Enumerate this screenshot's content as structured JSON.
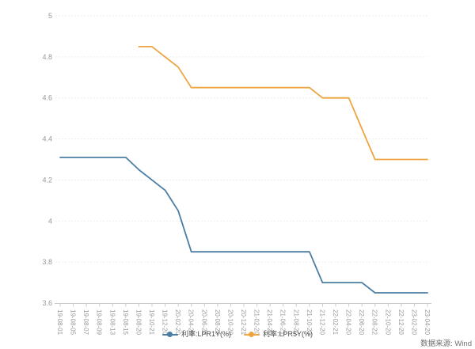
{
  "chart_data": {
    "type": "line",
    "title": "",
    "xlabel": "",
    "ylabel": "",
    "ylim": [
      3.6,
      5
    ],
    "yticks": [
      3.6,
      3.8,
      4,
      4.2,
      4.4,
      4.6,
      4.8,
      5
    ],
    "grid": true,
    "legend_position": "bottom",
    "categories": [
      "19-08-01",
      "19-08-05",
      "19-08-07",
      "19-08-09",
      "19-08-13",
      "19-08-15",
      "19-08-20",
      "19-10-21",
      "19-12-20",
      "20-02-20",
      "20-04-20",
      "20-06-22",
      "20-08-20",
      "20-10-20",
      "20-12-21",
      "21-02-20",
      "21-04-20",
      "21-06-21",
      "21-08-20",
      "21-10-20",
      "21-12-20",
      "22-02-21",
      "22-04-20",
      "22-06-20",
      "22-08-22",
      "22-10-20",
      "22-12-20",
      "23-02-20",
      "23-04-20"
    ],
    "series": [
      {
        "name": "利率:LPR1Y(%)",
        "color": "#4b7ea4",
        "values": [
          4.31,
          4.31,
          4.31,
          4.31,
          4.31,
          4.31,
          4.25,
          4.2,
          4.15,
          4.05,
          3.85,
          3.85,
          3.85,
          3.85,
          3.85,
          3.85,
          3.85,
          3.85,
          3.85,
          3.85,
          3.7,
          3.7,
          3.7,
          3.7,
          3.65,
          3.65,
          3.65,
          3.65,
          3.65
        ]
      },
      {
        "name": "利率:LPR5Y(%)",
        "color": "#eca53f",
        "values": [
          null,
          null,
          null,
          null,
          null,
          null,
          4.85,
          4.85,
          4.8,
          4.75,
          4.65,
          4.65,
          4.65,
          4.65,
          4.65,
          4.65,
          4.65,
          4.65,
          4.65,
          4.65,
          4.6,
          4.6,
          4.6,
          4.45,
          4.3,
          4.3,
          4.3,
          4.3,
          4.3
        ]
      }
    ]
  },
  "legend": {
    "items": [
      {
        "label": "利率:LPR1Y(%)",
        "color": "#4b7ea4"
      },
      {
        "label": "利率:LPR5Y(%)",
        "color": "#eca53f"
      }
    ]
  },
  "footer": {
    "source_label": "数据来源: Wind"
  },
  "style": {
    "grid_color": "#e7e7e7",
    "axis_color": "#cccccc",
    "tick_label_color": "#999999"
  }
}
